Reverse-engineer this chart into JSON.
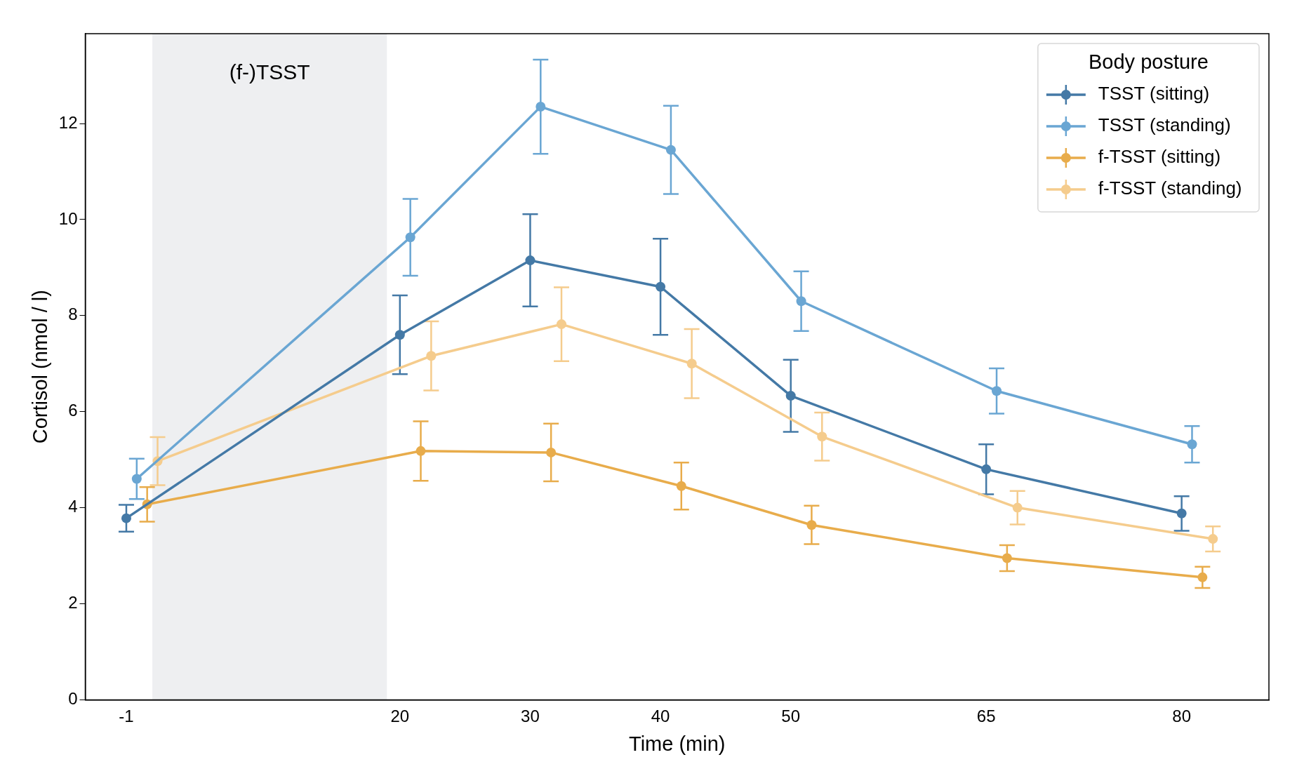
{
  "chart_data": {
    "type": "line",
    "xlabel": "Time (min)",
    "ylabel": "Cortisol (nmol / l)",
    "legend_title": "Body posture",
    "legend": "top right",
    "grid": false,
    "marker": "circle",
    "line_style": "solid",
    "xlim": [
      -4.15,
      86.7
    ],
    "xticks": [
      -1,
      20,
      30,
      40,
      50,
      65,
      80
    ],
    "ylim": [
      0,
      13.87
    ],
    "yticks": [
      0,
      2,
      4,
      6,
      8,
      10,
      12
    ],
    "bands": [
      {
        "axis": "x",
        "from": 1,
        "to": 19,
        "label": "(f-)TSST",
        "color": "#eeeff1"
      }
    ],
    "series": [
      {
        "name": "TSST (sitting)",
        "color": "#4479a6",
        "x": [
          -1,
          20,
          30,
          40,
          50,
          65,
          80
        ],
        "values": [
          3.78,
          7.6,
          9.15,
          8.6,
          6.33,
          4.8,
          3.88
        ],
        "errors": [
          0.28,
          0.82,
          0.96,
          1.0,
          0.75,
          0.52,
          0.36
        ]
      },
      {
        "name": "TSST (standing)",
        "color": "#6aa6d3",
        "x": [
          -0.2,
          20.8,
          30.8,
          40.8,
          50.8,
          65.8,
          80.8
        ],
        "values": [
          4.6,
          9.63,
          12.35,
          11.45,
          8.3,
          6.43,
          5.32
        ],
        "errors": [
          0.42,
          0.8,
          0.98,
          0.92,
          0.62,
          0.47,
          0.38
        ]
      },
      {
        "name": "f-TSST (sitting)",
        "color": "#e8ac4b",
        "x": [
          0.6,
          21.6,
          31.6,
          41.6,
          51.6,
          66.6,
          81.6
        ],
        "values": [
          4.07,
          5.18,
          5.15,
          4.45,
          3.64,
          2.95,
          2.55
        ],
        "errors": [
          0.36,
          0.62,
          0.6,
          0.49,
          0.4,
          0.27,
          0.22
        ]
      },
      {
        "name": "f-TSST (standing)",
        "color": "#f5cc8d",
        "x": [
          1.4,
          22.4,
          32.4,
          42.4,
          52.4,
          67.4,
          82.4
        ],
        "values": [
          4.97,
          7.16,
          7.82,
          7.0,
          5.48,
          4.0,
          3.35
        ],
        "errors": [
          0.5,
          0.72,
          0.77,
          0.72,
          0.5,
          0.35,
          0.26
        ]
      }
    ]
  }
}
